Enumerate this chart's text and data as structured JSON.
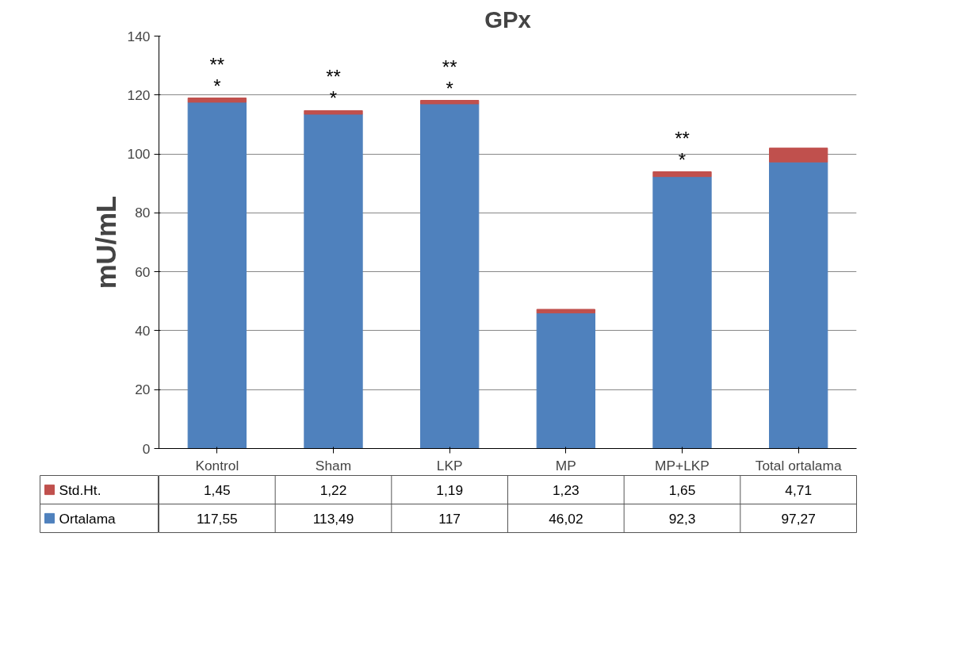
{
  "chart_data": {
    "type": "bar",
    "title": "GPx",
    "ylabel": "mU/mL",
    "stacked": true,
    "categories": [
      "Kontrol",
      "Sham",
      "LKP",
      "MP",
      "MP+LKP",
      "Total ortalama"
    ],
    "series": [
      {
        "name": "Ortalama",
        "color": "#4f81bd",
        "values": [
          117.55,
          113.49,
          117,
          46.02,
          92.3,
          97.27
        ],
        "value_labels": [
          "117,55",
          "113,49",
          "117",
          "46,02",
          "92,3",
          "97,27"
        ]
      },
      {
        "name": "Std.Ht.",
        "color": "#c0504d",
        "values": [
          1.45,
          1.22,
          1.19,
          1.23,
          1.65,
          4.71
        ],
        "value_labels": [
          "1,45",
          "1,22",
          "1,19",
          "1,23",
          "1,65",
          "4,71"
        ]
      }
    ],
    "annotations": [
      {
        "text": "**\n*",
        "x": "Kontrol",
        "y": 119.0
      },
      {
        "text": "**\n*",
        "x": "Sham",
        "y": 114.71
      },
      {
        "text": "**\n*",
        "x": "LKP",
        "y": 118.19
      },
      {
        "text": "**\n*",
        "x": "MP+LKP",
        "y": 93.95
      }
    ],
    "ylim": [
      0,
      140
    ],
    "yticks": [
      0,
      20,
      40,
      60,
      80,
      100,
      120,
      140
    ],
    "grid": "y",
    "legend": "bottom left"
  }
}
